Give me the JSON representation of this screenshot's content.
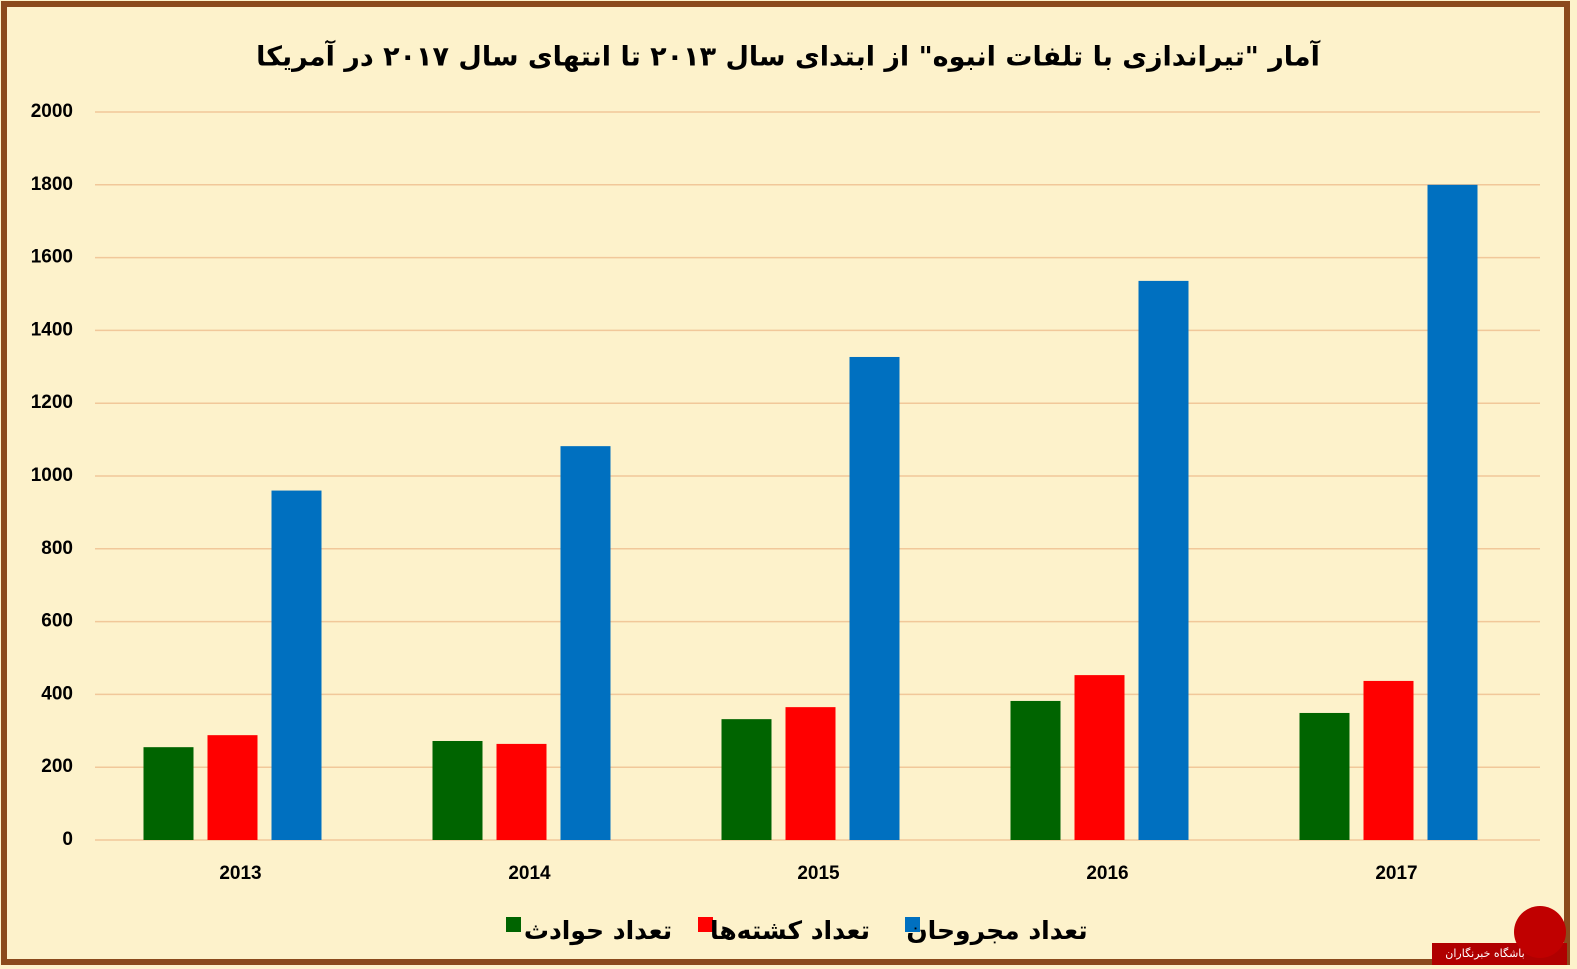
{
  "chart_data": {
    "type": "bar",
    "title": "آمار \"تیراندازی با تلفات انبوه\" از ابتدای سال ۲۰۱۳ تا انتهای سال ۲۰۱۷ در آمریکا",
    "categories": [
      "2013",
      "2014",
      "2015",
      "2016",
      "2017"
    ],
    "series": [
      {
        "name": "تعداد حوادث",
        "color": "#006400",
        "values": [
          255,
          272,
          332,
          382,
          349
        ]
      },
      {
        "name": "تعداد کشته‌ها",
        "color": "#ff0000",
        "values": [
          288,
          264,
          365,
          453,
          437
        ]
      },
      {
        "name": "تعداد مجروحان",
        "color": "#0070c0",
        "values": [
          960,
          1082,
          1327,
          1536,
          1800
        ]
      }
    ],
    "ylim": [
      0,
      2000
    ],
    "yticks": [
      0,
      200,
      400,
      600,
      800,
      1000,
      1200,
      1400,
      1600,
      1800,
      2000
    ],
    "grid": true,
    "legend": "bottom",
    "watermark": "باشگاه خبرنگاران"
  }
}
